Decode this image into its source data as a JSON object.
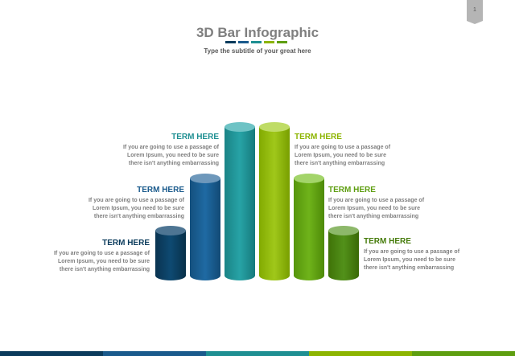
{
  "page_number": "1",
  "title": "3D Bar Infographic",
  "subtitle": "Type the subtitle of your great here",
  "colors": {
    "navy": "#0b3b5c",
    "blue": "#1a5a8c",
    "teal": "#1e8f92",
    "lime": "#8cb400",
    "green": "#5e9e10",
    "darkgreen": "#457b0a"
  },
  "terms": [
    {
      "title": "TERM HERE",
      "text": [
        "If you are going to use a passage of",
        "Lorem Ipsum, you need to be sure",
        "there isn't anything embarrassing"
      ]
    },
    {
      "title": "TERM HERE",
      "text": [
        "If you are going to use a passage of",
        "Lorem Ipsum, you need to be sure",
        "there isn't anything embarrassing"
      ]
    },
    {
      "title": "TERM HERE",
      "text": [
        "If you are going to use a passage of",
        "Lorem Ipsum, you need to be sure",
        "there isn't anything embarrassing"
      ]
    },
    {
      "title": "TERM HERE",
      "text": [
        "If you are going to use a passage of",
        "Lorem Ipsum, you need to be sure",
        "there isn't anything embarrassing"
      ]
    },
    {
      "title": "TERM HERE",
      "text": [
        "If you are going to use a passage of",
        "Lorem Ipsum, you need to be sure",
        "there isn't anything embarrassing"
      ]
    },
    {
      "title": "TERM HERE",
      "text": [
        "If you are going to use a passage of",
        "Lorem Ipsum, you need to be sure",
        "there isn't anything embarrassing"
      ]
    }
  ]
}
